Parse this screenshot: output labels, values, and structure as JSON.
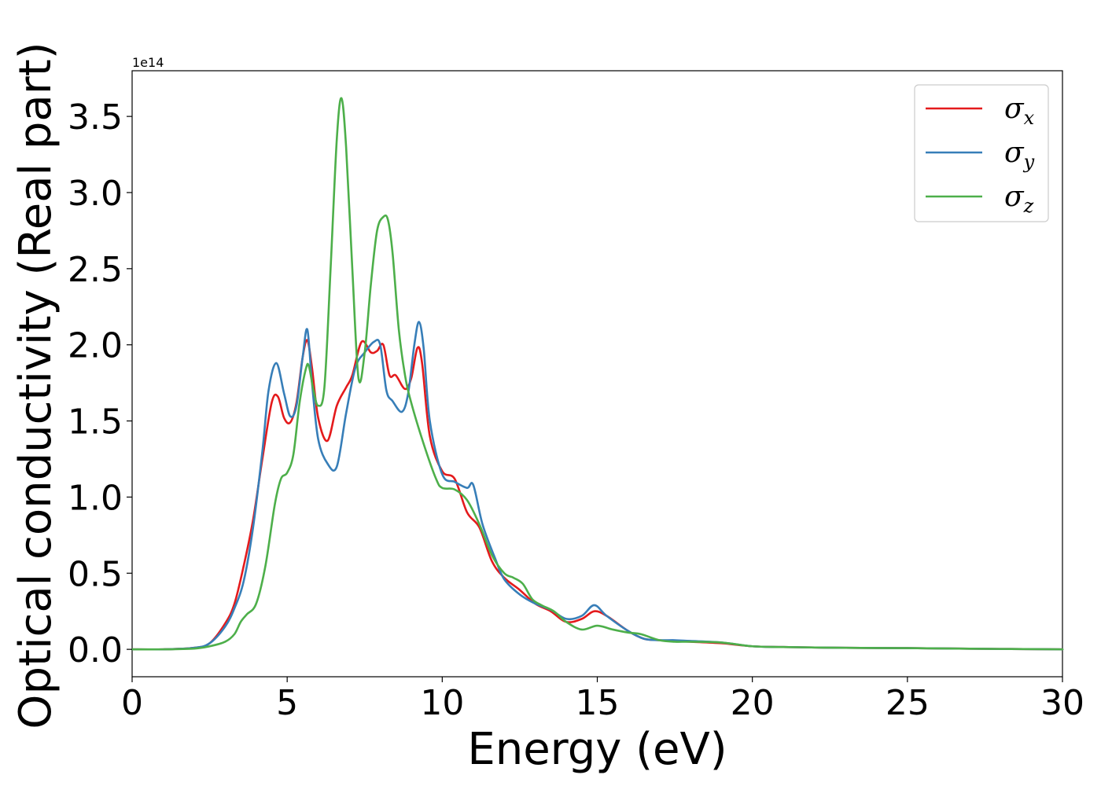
{
  "chart_data": {
    "type": "line",
    "title": "",
    "xlabel": "Energy (eV)",
    "ylabel": "Optical conductivity (Real part)",
    "y_offset_text": "1e14",
    "xlim": [
      0,
      30
    ],
    "ylim": [
      -0.18,
      3.8
    ],
    "y_scale_factor": 100000000000000.0,
    "x_ticks": [
      0,
      5,
      10,
      15,
      20,
      25,
      30
    ],
    "x_tick_labels": [
      "0",
      "5",
      "10",
      "15",
      "20",
      "25",
      "30"
    ],
    "y_ticks": [
      0.0,
      0.5,
      1.0,
      1.5,
      2.0,
      2.5,
      3.0,
      3.5
    ],
    "y_tick_labels": [
      "0.0",
      "0.5",
      "1.0",
      "1.5",
      "2.0",
      "2.5",
      "3.0",
      "3.5"
    ],
    "grid": false,
    "legend_position": "top-right",
    "series": [
      {
        "name": "σx",
        "legend_symbol": "σ",
        "legend_sub": "x",
        "color": "#e41a1c",
        "x": [
          0,
          1,
          2,
          2.5,
          3,
          3.3,
          3.6,
          3.9,
          4.2,
          4.5,
          4.7,
          4.9,
          5.1,
          5.3,
          5.5,
          5.65,
          5.8,
          6.0,
          6.3,
          6.6,
          6.9,
          7.1,
          7.4,
          7.7,
          7.9,
          8.1,
          8.3,
          8.5,
          8.8,
          9.0,
          9.2,
          9.35,
          9.6,
          10.0,
          10.4,
          10.8,
          11.2,
          11.6,
          12.0,
          12.5,
          13.0,
          13.5,
          14.0,
          14.5,
          14.9,
          15.3,
          16.0,
          16.5,
          17.0,
          17.5,
          18.0,
          19.0,
          20.0,
          21.0,
          23.0,
          25.0,
          27.0,
          30.0
        ],
        "y": [
          0,
          0,
          0.01,
          0.04,
          0.17,
          0.3,
          0.55,
          0.85,
          1.25,
          1.62,
          1.66,
          1.52,
          1.49,
          1.62,
          1.92,
          2.03,
          1.85,
          1.52,
          1.37,
          1.6,
          1.72,
          1.8,
          2.02,
          1.95,
          1.96,
          2.0,
          1.8,
          1.8,
          1.71,
          1.78,
          1.98,
          1.88,
          1.4,
          1.17,
          1.12,
          0.9,
          0.8,
          0.58,
          0.47,
          0.39,
          0.3,
          0.25,
          0.18,
          0.2,
          0.25,
          0.22,
          0.12,
          0.07,
          0.06,
          0.055,
          0.05,
          0.04,
          0.02,
          0.015,
          0.01,
          0.008,
          0.004,
          0.0
        ]
      },
      {
        "name": "σy",
        "legend_symbol": "σ",
        "legend_sub": "y",
        "color": "#377eb8",
        "x": [
          0,
          1,
          2,
          2.5,
          3,
          3.3,
          3.6,
          3.9,
          4.2,
          4.4,
          4.65,
          4.9,
          5.1,
          5.3,
          5.5,
          5.65,
          5.8,
          6.0,
          6.3,
          6.6,
          6.9,
          7.2,
          7.5,
          7.8,
          8.0,
          8.2,
          8.4,
          8.7,
          8.9,
          9.1,
          9.25,
          9.4,
          9.6,
          10.0,
          10.4,
          10.8,
          11.0,
          11.3,
          11.7,
          12.0,
          12.5,
          13.0,
          13.5,
          14.0,
          14.5,
          14.9,
          15.3,
          16.0,
          16.5,
          17.0,
          17.5,
          18.0,
          19.0,
          20.0,
          21.0,
          23.0,
          25.0,
          27.0,
          30.0
        ],
        "y": [
          0,
          0,
          0.01,
          0.04,
          0.15,
          0.27,
          0.45,
          0.8,
          1.3,
          1.7,
          1.88,
          1.68,
          1.53,
          1.6,
          1.92,
          2.1,
          1.75,
          1.38,
          1.22,
          1.2,
          1.55,
          1.85,
          1.95,
          2.02,
          2.0,
          1.7,
          1.63,
          1.56,
          1.68,
          2.0,
          2.15,
          1.98,
          1.5,
          1.15,
          1.1,
          1.06,
          1.08,
          0.82,
          0.6,
          0.46,
          0.36,
          0.3,
          0.26,
          0.2,
          0.22,
          0.29,
          0.22,
          0.12,
          0.07,
          0.06,
          0.06,
          0.055,
          0.045,
          0.02,
          0.015,
          0.01,
          0.008,
          0.004,
          0.0
        ]
      },
      {
        "name": "σz",
        "legend_symbol": "σ",
        "legend_sub": "z",
        "color": "#4daf4a",
        "x": [
          0,
          1,
          2,
          2.5,
          3,
          3.3,
          3.5,
          3.7,
          4.0,
          4.3,
          4.6,
          4.8,
          5.0,
          5.2,
          5.4,
          5.6,
          5.7,
          5.85,
          6.0,
          6.2,
          6.4,
          6.6,
          6.75,
          6.9,
          7.1,
          7.3,
          7.5,
          7.7,
          7.9,
          8.1,
          8.25,
          8.4,
          8.6,
          8.8,
          9.0,
          9.4,
          9.8,
          10.0,
          10.4,
          10.8,
          11.2,
          11.6,
          12.0,
          12.3,
          12.6,
          12.9,
          13.2,
          13.6,
          14.0,
          14.5,
          15.0,
          15.5,
          16.0,
          16.4,
          17.0,
          17.5,
          18.0,
          19.0,
          20.0,
          21.0,
          23.0,
          25.0,
          27.0,
          30.0
        ],
        "y": [
          0,
          0,
          0.005,
          0.02,
          0.05,
          0.1,
          0.18,
          0.23,
          0.3,
          0.55,
          0.95,
          1.12,
          1.16,
          1.28,
          1.62,
          1.84,
          1.86,
          1.7,
          1.6,
          1.72,
          2.5,
          3.35,
          3.62,
          3.3,
          2.5,
          1.78,
          1.95,
          2.4,
          2.75,
          2.84,
          2.82,
          2.6,
          2.1,
          1.8,
          1.62,
          1.35,
          1.12,
          1.06,
          1.05,
          0.98,
          0.82,
          0.62,
          0.5,
          0.47,
          0.43,
          0.33,
          0.29,
          0.25,
          0.18,
          0.13,
          0.155,
          0.13,
          0.11,
          0.1,
          0.06,
          0.05,
          0.05,
          0.045,
          0.02,
          0.015,
          0.01,
          0.008,
          0.004,
          0.0
        ]
      }
    ]
  }
}
